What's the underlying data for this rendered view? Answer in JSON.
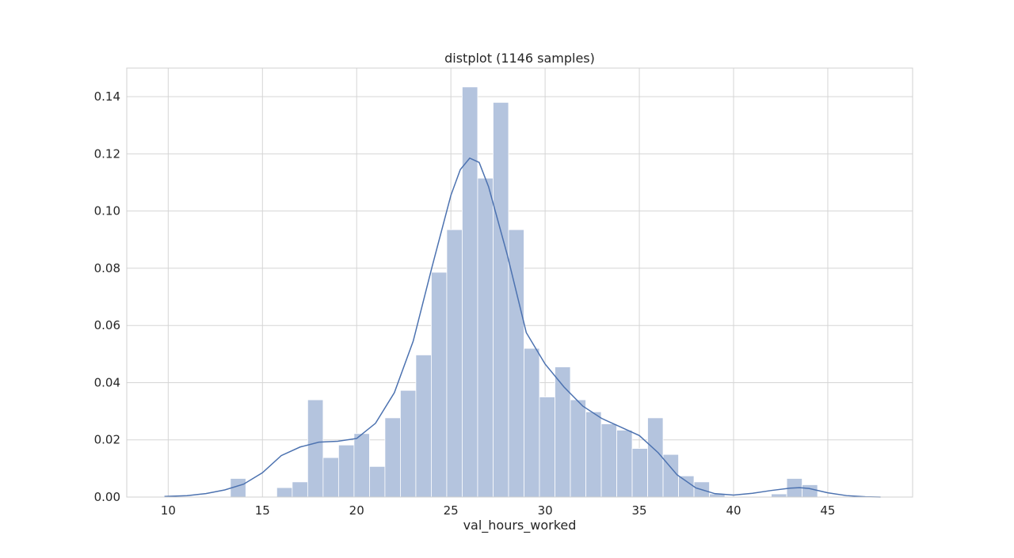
{
  "chart_data": {
    "type": "bar",
    "title": "distplot (1146 samples)",
    "xlabel": "val_hours_worked",
    "ylabel": "",
    "xlim": [
      7.8,
      49.5
    ],
    "ylim": [
      0,
      0.15
    ],
    "xticks": [
      10,
      15,
      20,
      25,
      30,
      35,
      40,
      45
    ],
    "xtick_labels": [
      "10",
      "15",
      "20",
      "25",
      "30",
      "35",
      "40",
      "45"
    ],
    "yticks": [
      0.0,
      0.02,
      0.04,
      0.06,
      0.08,
      0.1,
      0.12,
      0.14
    ],
    "ytick_labels": [
      "0.00",
      "0.02",
      "0.04",
      "0.06",
      "0.08",
      "0.10",
      "0.12",
      "0.14"
    ],
    "grid": true,
    "colors": {
      "bars": "#b4c4de",
      "bar_edge": "#ffffff",
      "kde": "#4c72b0",
      "grid": "#d5d5d5",
      "frame": "#d0d0d0"
    },
    "histogram": {
      "bin_width": 0.82,
      "bins": [
        {
          "x0": 13.3,
          "value": 0.0065
        },
        {
          "x0": 15.76,
          "value": 0.0033
        },
        {
          "x0": 16.58,
          "value": 0.0053
        },
        {
          "x0": 17.4,
          "value": 0.034
        },
        {
          "x0": 18.22,
          "value": 0.0138
        },
        {
          "x0": 19.04,
          "value": 0.0182
        },
        {
          "x0": 19.86,
          "value": 0.0222
        },
        {
          "x0": 20.68,
          "value": 0.0107
        },
        {
          "x0": 21.5,
          "value": 0.0277
        },
        {
          "x0": 22.32,
          "value": 0.0373
        },
        {
          "x0": 23.14,
          "value": 0.0497
        },
        {
          "x0": 23.96,
          "value": 0.0786
        },
        {
          "x0": 24.78,
          "value": 0.0935
        },
        {
          "x0": 25.6,
          "value": 0.1434
        },
        {
          "x0": 26.42,
          "value": 0.1115
        },
        {
          "x0": 27.24,
          "value": 0.138
        },
        {
          "x0": 28.06,
          "value": 0.0935
        },
        {
          "x0": 28.88,
          "value": 0.052
        },
        {
          "x0": 29.7,
          "value": 0.035
        },
        {
          "x0": 30.52,
          "value": 0.0455
        },
        {
          "x0": 31.34,
          "value": 0.034
        },
        {
          "x0": 32.16,
          "value": 0.0298
        },
        {
          "x0": 32.98,
          "value": 0.0256
        },
        {
          "x0": 33.8,
          "value": 0.0234
        },
        {
          "x0": 34.62,
          "value": 0.017
        },
        {
          "x0": 35.44,
          "value": 0.0277
        },
        {
          "x0": 36.26,
          "value": 0.0149
        },
        {
          "x0": 37.08,
          "value": 0.0074
        },
        {
          "x0": 37.9,
          "value": 0.0053
        },
        {
          "x0": 38.72,
          "value": 0.0011
        },
        {
          "x0": 42.0,
          "value": 0.0011
        },
        {
          "x0": 42.82,
          "value": 0.0065
        },
        {
          "x0": 43.64,
          "value": 0.0043
        }
      ]
    },
    "kde": {
      "x": [
        9.8,
        11.0,
        12.0,
        13.0,
        14.0,
        15.0,
        16.0,
        17.0,
        18.0,
        19.0,
        20.0,
        21.0,
        22.0,
        23.0,
        24.0,
        25.0,
        25.5,
        26.0,
        26.5,
        27.0,
        28.0,
        29.0,
        30.0,
        31.0,
        32.0,
        33.0,
        34.0,
        35.0,
        36.0,
        37.0,
        38.0,
        39.0,
        40.0,
        41.0,
        42.0,
        43.0,
        43.5,
        44.0,
        45.0,
        46.0,
        47.0,
        47.8
      ],
      "y": [
        0.0002,
        0.0005,
        0.0012,
        0.0025,
        0.0045,
        0.0085,
        0.0145,
        0.0175,
        0.0192,
        0.0195,
        0.0205,
        0.0258,
        0.0365,
        0.0545,
        0.0805,
        0.1055,
        0.1145,
        0.1185,
        0.117,
        0.1085,
        0.0845,
        0.0575,
        0.0465,
        0.0385,
        0.0318,
        0.0275,
        0.0245,
        0.0215,
        0.0155,
        0.0078,
        0.0032,
        0.0012,
        0.0007,
        0.0013,
        0.0023,
        0.0031,
        0.0033,
        0.003,
        0.0015,
        0.0005,
        0.0001,
        0.0
      ]
    }
  }
}
